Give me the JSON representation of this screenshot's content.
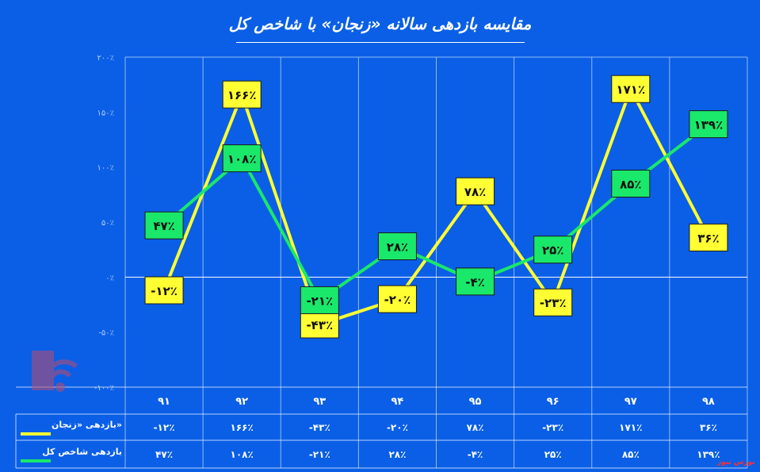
{
  "title": "مقایسه بازدهی سالانه «زنجان» با شاخص کل",
  "watermark": "بورس نیوز",
  "legend_zanjan": "بازدهی «زنجان»",
  "legend_index": "بازدهی شاخص کل",
  "colors": {
    "background": "#0a5fe6",
    "zanjan": "#ffff33",
    "index": "#1ae86a",
    "grid": "#ffffff"
  },
  "chart_data": {
    "type": "line",
    "categories": [
      "۹۱",
      "۹۲",
      "۹۳",
      "۹۴",
      "۹۵",
      "۹۶",
      "۹۷",
      "۹۸"
    ],
    "ylim": [
      -100,
      200
    ],
    "yticks": [
      -100,
      -50,
      0,
      50,
      100,
      150,
      200
    ],
    "ytick_labels": [
      "-۱۰۰٪",
      "-۵۰٪",
      "۰٪",
      "۵۰٪",
      "۱۰۰٪",
      "۱۵۰٪",
      "۲۰۰٪"
    ],
    "series": [
      {
        "name": "بازدهی «زنجان»",
        "values": [
          -12,
          166,
          -43,
          -20,
          78,
          -23,
          171,
          36
        ],
        "labels": [
          "-۱۲٪",
          "۱۶۶٪",
          "-۴۳٪",
          "-۲۰٪",
          "۷۸٪",
          "-۲۳٪",
          "۱۷۱٪",
          "۳۶٪"
        ]
      },
      {
        "name": "بازدهی شاخص کل",
        "values": [
          47,
          108,
          -21,
          28,
          -4,
          25,
          85,
          139
        ],
        "labels": [
          "۴۷٪",
          "۱۰۸٪",
          "-۲۱٪",
          "۲۸٪",
          "-۴٪",
          "۲۵٪",
          "۸۵٪",
          "۱۳۹٪"
        ]
      }
    ],
    "grid": true
  }
}
